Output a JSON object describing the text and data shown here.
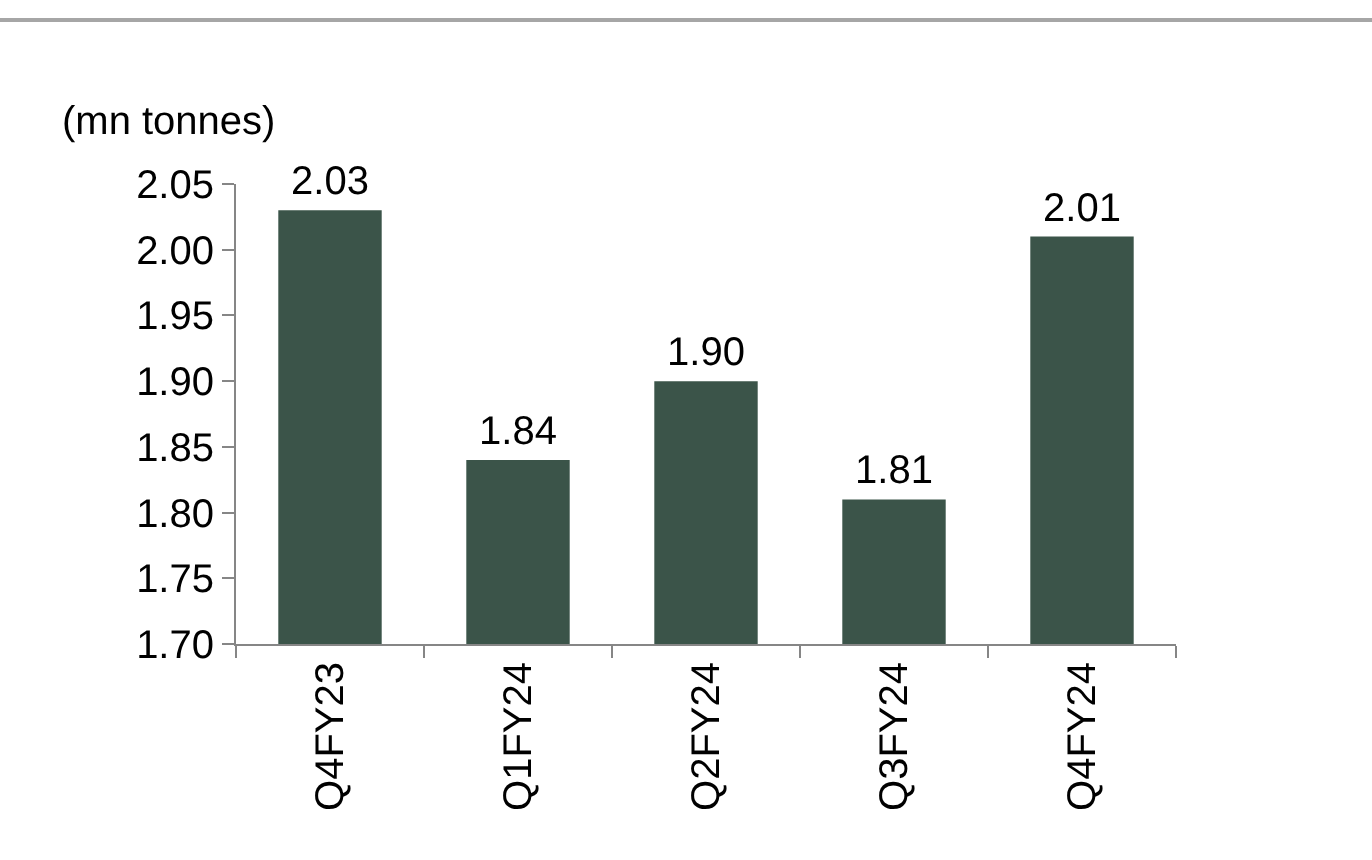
{
  "chart_data": {
    "type": "bar",
    "ylabel": "(mn tonnes)",
    "categories": [
      "Q4FY23",
      "Q1FY24",
      "Q2FY24",
      "Q3FY24",
      "Q4FY24"
    ],
    "values": [
      2.03,
      1.84,
      1.9,
      1.81,
      2.01
    ],
    "value_labels": [
      "2.03",
      "1.84",
      "1.90",
      "1.81",
      "2.01"
    ],
    "color": "#3b5449",
    "ylim": [
      1.7,
      2.05
    ],
    "yticks": [
      {
        "value": 1.7,
        "label": "1.70"
      },
      {
        "value": 1.75,
        "label": "1.75"
      },
      {
        "value": 1.8,
        "label": "1.80"
      },
      {
        "value": 1.85,
        "label": "1.85"
      },
      {
        "value": 1.9,
        "label": "1.90"
      },
      {
        "value": 1.95,
        "label": "1.95"
      },
      {
        "value": 2.0,
        "label": "2.00"
      },
      {
        "value": 2.05,
        "label": "2.05"
      }
    ],
    "grid": false
  }
}
